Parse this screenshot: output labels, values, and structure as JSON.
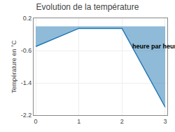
{
  "chart_data": {
    "type": "area",
    "title": "Evolution de la température",
    "y_label": "Température en °C",
    "x": [
      0,
      1,
      2,
      3
    ],
    "values": [
      -0.5,
      -0.05,
      -0.05,
      -2.0
    ],
    "xlim": [
      -0.05,
      3.05
    ],
    "xticks": [
      0,
      1,
      2,
      3
    ],
    "ylim": [
      -2.2,
      0.2
    ],
    "yticks": [
      0.2,
      -0.6,
      -1.4,
      -2.2
    ],
    "annotations": [
      {
        "text": "heure par heure",
        "x": 2.2,
        "y": -0.38
      }
    ],
    "grid": true
  }
}
